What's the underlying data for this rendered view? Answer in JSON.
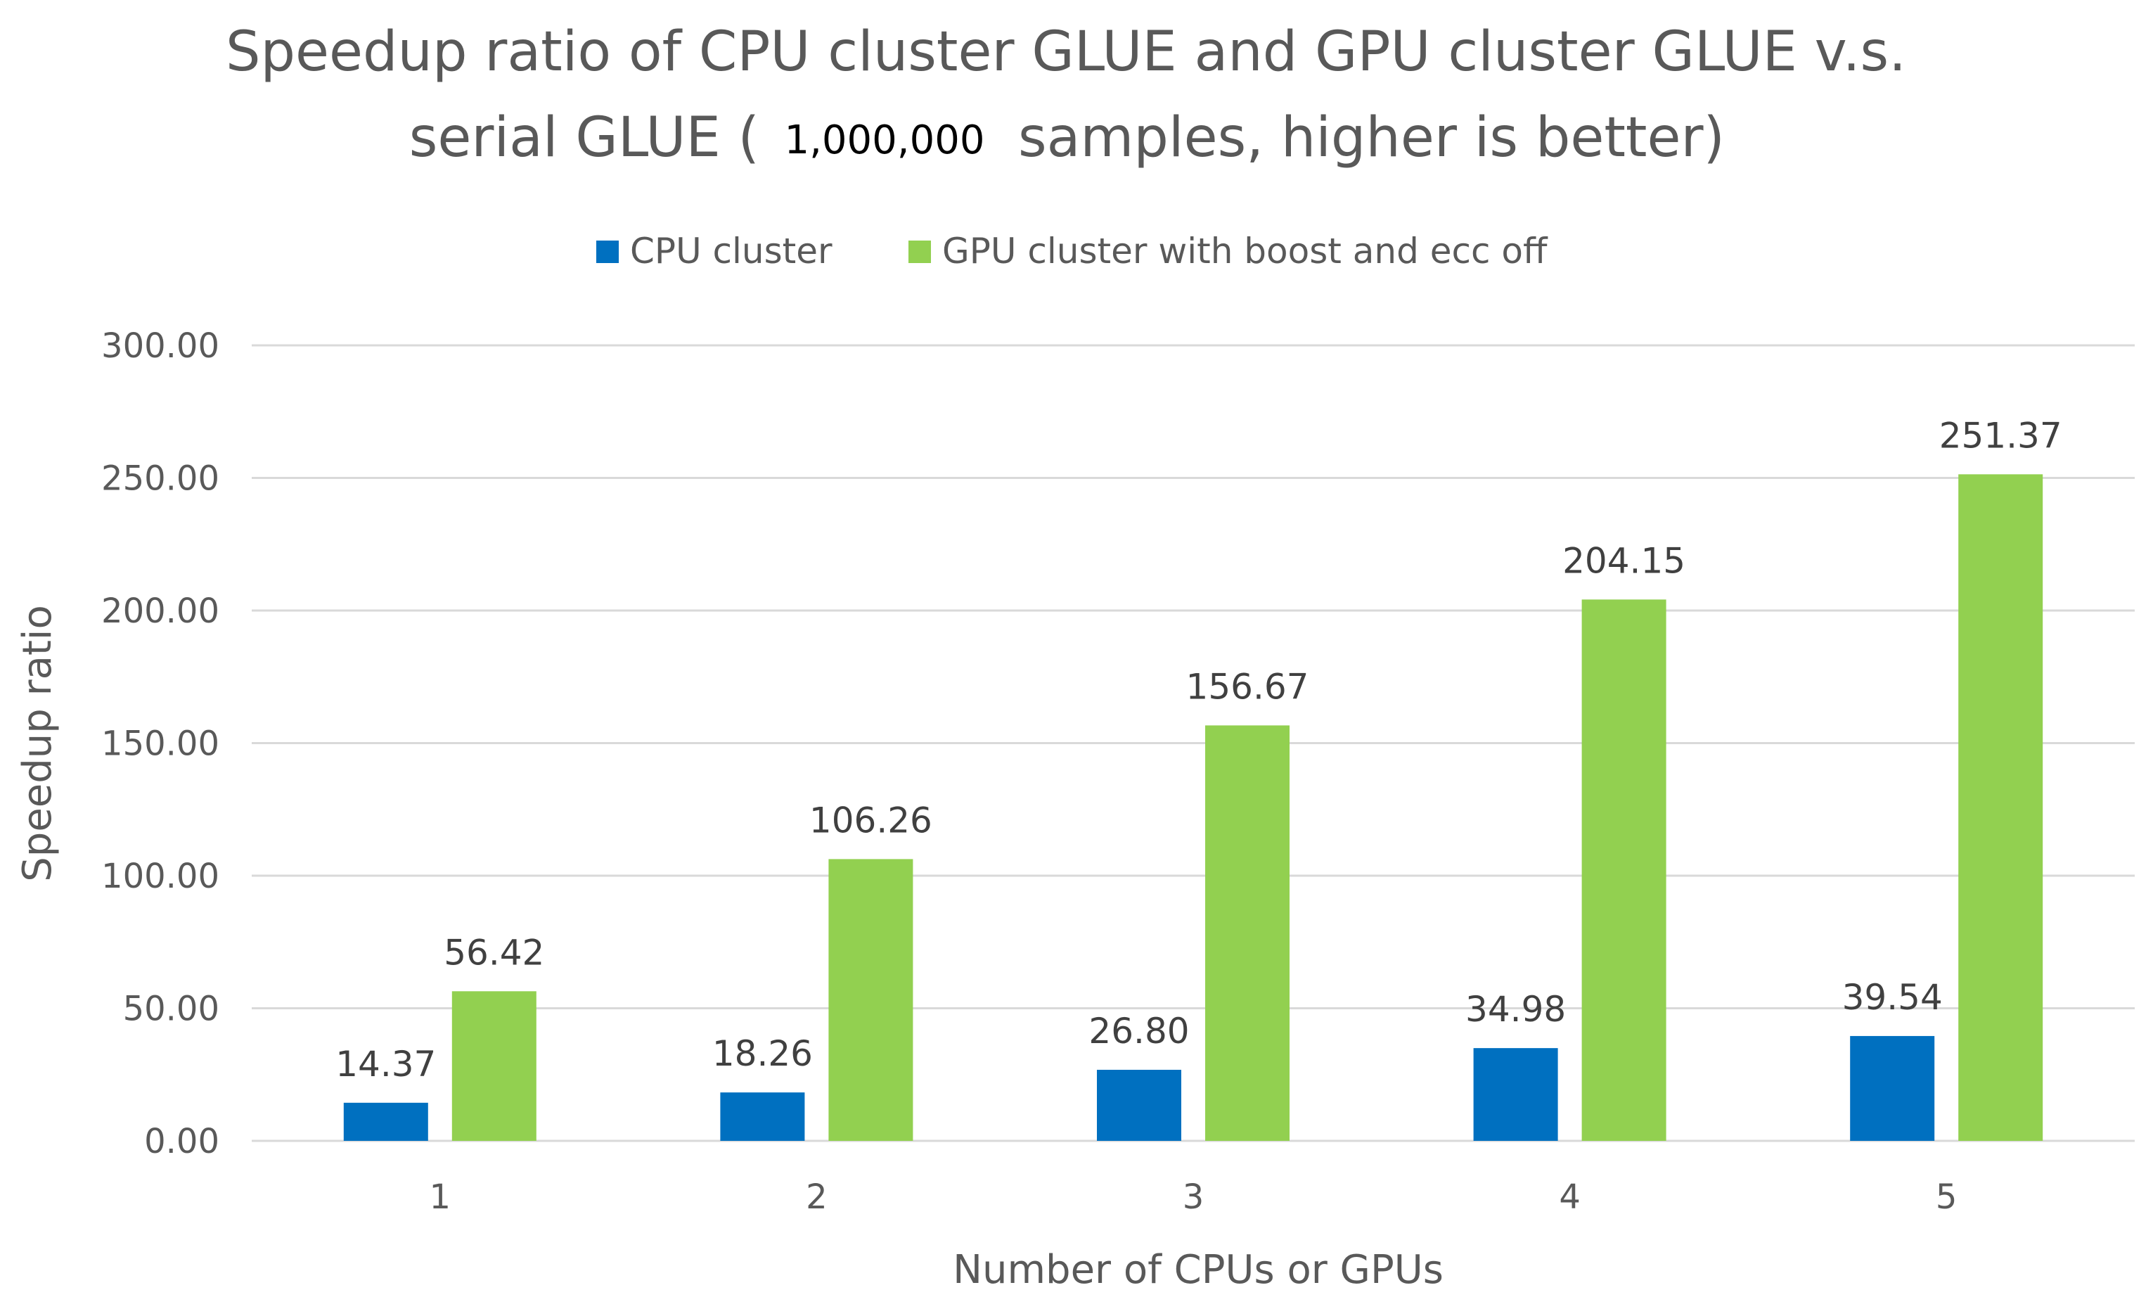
{
  "chart_data": {
    "type": "bar",
    "title_line1": "Speedup ratio of CPU cluster GLUE and GPU cluster GLUE v.s.",
    "title_line2_prefix": "serial GLUE (",
    "title_line2_number": "1,000,000",
    "title_line2_suffix": "samples, higher is better)",
    "xlabel": "Number of CPUs or GPUs",
    "ylabel": "Speedup ratio",
    "categories": [
      "1",
      "2",
      "3",
      "4",
      "5"
    ],
    "ylim": [
      0,
      300
    ],
    "yticks": [
      0,
      50,
      100,
      150,
      200,
      250,
      300
    ],
    "ytick_labels": [
      "0.00",
      "50.00",
      "100.00",
      "150.00",
      "200.00",
      "250.00",
      "300.00"
    ],
    "grid": true,
    "legend_position": "top",
    "series": [
      {
        "name": "CPU cluster",
        "color": "#0070C0",
        "values": [
          14.37,
          18.26,
          26.8,
          34.98,
          39.54
        ],
        "labels": [
          "14.37",
          "18.26",
          "26.80",
          "34.98",
          "39.54"
        ]
      },
      {
        "name": "GPU cluster with boost and ecc off",
        "color": "#92D050",
        "values": [
          56.42,
          106.26,
          156.67,
          204.15,
          251.37
        ],
        "labels": [
          "56.42",
          "106.26",
          "156.67",
          "204.15",
          "251.37"
        ]
      }
    ]
  }
}
